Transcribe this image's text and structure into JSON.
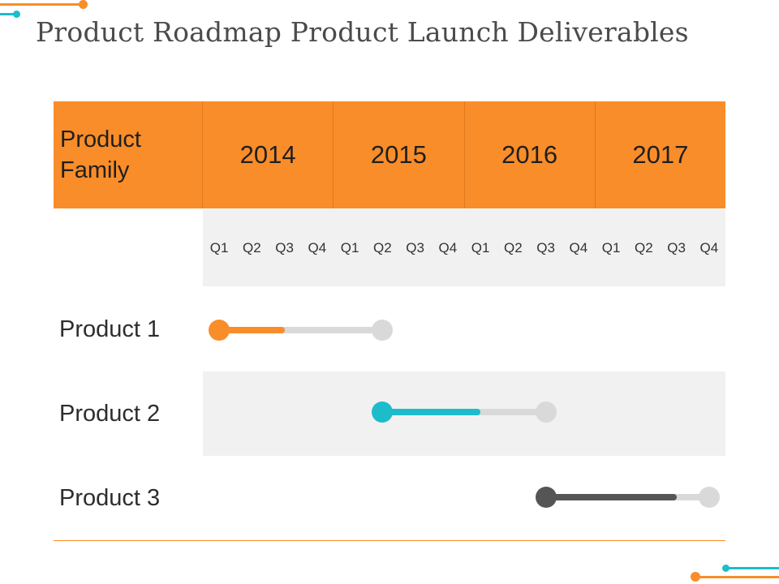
{
  "title": "Product Roadmap Product Launch Deliverables",
  "header": {
    "family_label": "Product Family",
    "years": [
      "2014",
      "2015",
      "2016",
      "2017"
    ]
  },
  "quarters": [
    "Q1",
    "Q2",
    "Q3",
    "Q4",
    "Q1",
    "Q2",
    "Q3",
    "Q4",
    "Q1",
    "Q2",
    "Q3",
    "Q4",
    "Q1",
    "Q2",
    "Q3",
    "Q4"
  ],
  "products": [
    {
      "label": "Product 1",
      "color": "#f98d29",
      "start": "2014 Q1",
      "end": "2015 Q2",
      "progress_end": "2014 Q3"
    },
    {
      "label": "Product 2",
      "color": "#1cbccb",
      "start": "2015 Q2",
      "end": "2016 Q3",
      "progress_end": "2016 Q1"
    },
    {
      "label": "Product 3",
      "color": "#555555",
      "start": "2016 Q3",
      "end": "2017 Q4",
      "progress_end": "2017 Q3"
    }
  ],
  "colors": {
    "accent_orange": "#f98d29",
    "accent_teal": "#1cbccb",
    "track_gray": "#d9d9d9",
    "band_gray": "#f1f1f1"
  }
}
